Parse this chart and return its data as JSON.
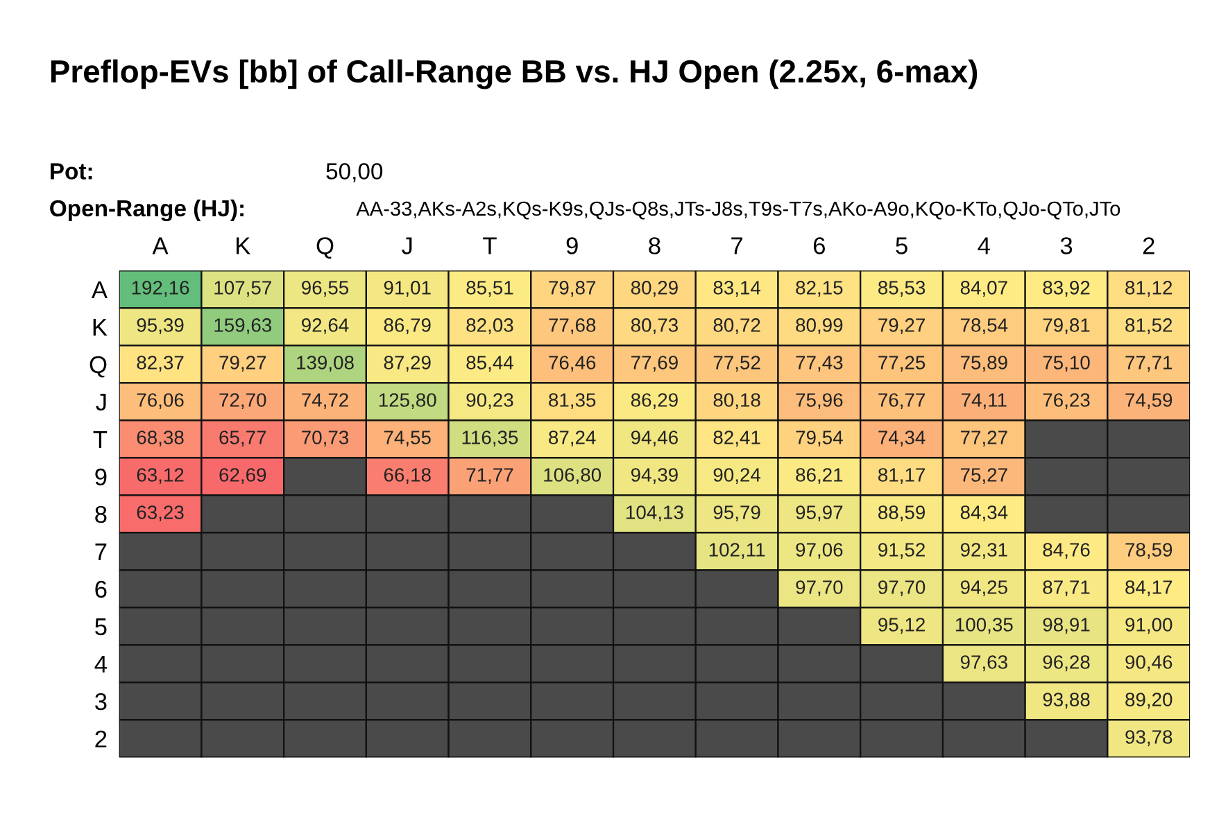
{
  "chart_data": {
    "type": "heatmap",
    "title": "Preflop-EVs [bb] of Call-Range BB vs. HJ Open (2.25x, 6-max)",
    "annotations": [
      "Pot:",
      "50,00",
      "Open-Range (HJ):",
      "AA-33,AKs-A2s,KQs-K9s,QJs-Q8s,JTs-J8s,T9s-T7s,AKo-A9o,KQo-KTo,QJo-QTo,JTo"
    ],
    "categories": [
      "A",
      "K",
      "Q",
      "J",
      "T",
      "9",
      "8",
      "7",
      "6",
      "5",
      "4",
      "3",
      "2"
    ],
    "y_categories": [
      "A",
      "K",
      "Q",
      "J",
      "T",
      "9",
      "8",
      "7",
      "6",
      "5",
      "4",
      "3",
      "2"
    ],
    "cells": [
      [
        192.16,
        107.57,
        96.55,
        91.01,
        85.51,
        79.87,
        80.29,
        83.14,
        82.15,
        85.53,
        84.07,
        83.92,
        81.12
      ],
      [
        95.39,
        159.63,
        92.64,
        86.79,
        82.03,
        77.68,
        80.73,
        80.72,
        80.99,
        79.27,
        78.54,
        79.81,
        81.52
      ],
      [
        82.37,
        79.27,
        139.08,
        87.29,
        85.44,
        76.46,
        77.69,
        77.52,
        77.43,
        77.25,
        75.89,
        75.1,
        77.71
      ],
      [
        76.06,
        72.7,
        74.72,
        125.8,
        90.23,
        81.35,
        86.29,
        80.18,
        75.96,
        76.77,
        74.11,
        76.23,
        74.59
      ],
      [
        68.38,
        65.77,
        70.73,
        74.55,
        116.35,
        87.24,
        94.46,
        82.41,
        79.54,
        74.34,
        77.27,
        null,
        null
      ],
      [
        63.12,
        62.69,
        null,
        66.18,
        71.77,
        106.8,
        94.39,
        90.24,
        86.21,
        81.17,
        75.27,
        null,
        null
      ],
      [
        63.23,
        null,
        null,
        null,
        null,
        null,
        104.13,
        95.79,
        95.97,
        88.59,
        84.34,
        null,
        null
      ],
      [
        null,
        null,
        null,
        null,
        null,
        null,
        null,
        102.11,
        97.06,
        91.52,
        92.31,
        84.76,
        78.59
      ],
      [
        null,
        null,
        null,
        null,
        null,
        null,
        null,
        null,
        97.7,
        97.7,
        94.25,
        87.71,
        84.17
      ],
      [
        null,
        null,
        null,
        null,
        null,
        null,
        null,
        null,
        null,
        95.12,
        100.35,
        98.91,
        91.0
      ],
      [
        null,
        null,
        null,
        null,
        null,
        null,
        null,
        null,
        null,
        null,
        97.63,
        96.28,
        90.46
      ],
      [
        null,
        null,
        null,
        null,
        null,
        null,
        null,
        null,
        null,
        null,
        null,
        93.88,
        89.2
      ],
      [
        null,
        null,
        null,
        null,
        null,
        null,
        null,
        null,
        null,
        null,
        null,
        null,
        93.78
      ]
    ],
    "cell_labels": [
      [
        "192,16",
        "107,57",
        "96,55",
        "91,01",
        "85,51",
        "79,87",
        "80,29",
        "83,14",
        "82,15",
        "85,53",
        "84,07",
        "83,92",
        "81,12"
      ],
      [
        "95,39",
        "159,63",
        "92,64",
        "86,79",
        "82,03",
        "77,68",
        "80,73",
        "80,72",
        "80,99",
        "79,27",
        "78,54",
        "79,81",
        "81,52"
      ],
      [
        "82,37",
        "79,27",
        "139,08",
        "87,29",
        "85,44",
        "76,46",
        "77,69",
        "77,52",
        "77,43",
        "77,25",
        "75,89",
        "75,10",
        "77,71"
      ],
      [
        "76,06",
        "72,70",
        "74,72",
        "125,80",
        "90,23",
        "81,35",
        "86,29",
        "80,18",
        "75,96",
        "76,77",
        "74,11",
        "76,23",
        "74,59"
      ],
      [
        "68,38",
        "65,77",
        "70,73",
        "74,55",
        "116,35",
        "87,24",
        "94,46",
        "82,41",
        "79,54",
        "74,34",
        "77,27",
        null,
        null
      ],
      [
        "63,12",
        "62,69",
        null,
        "66,18",
        "71,77",
        "106,80",
        "94,39",
        "90,24",
        "86,21",
        "81,17",
        "75,27",
        null,
        null
      ],
      [
        "63,23",
        null,
        null,
        null,
        null,
        null,
        "104,13",
        "95,79",
        "95,97",
        "88,59",
        "84,34",
        null,
        null
      ],
      [
        null,
        null,
        null,
        null,
        null,
        null,
        null,
        "102,11",
        "97,06",
        "91,52",
        "92,31",
        "84,76",
        "78,59"
      ],
      [
        null,
        null,
        null,
        null,
        null,
        null,
        null,
        null,
        "97,70",
        "97,70",
        "94,25",
        "87,71",
        "84,17"
      ],
      [
        null,
        null,
        null,
        null,
        null,
        null,
        null,
        null,
        null,
        "95,12",
        "100,35",
        "98,91",
        "91,00"
      ],
      [
        null,
        null,
        null,
        null,
        null,
        null,
        null,
        null,
        null,
        null,
        "97,63",
        "96,28",
        "90,46"
      ],
      [
        null,
        null,
        null,
        null,
        null,
        null,
        null,
        null,
        null,
        null,
        null,
        "93,88",
        "89,20"
      ],
      [
        null,
        null,
        null,
        null,
        null,
        null,
        null,
        null,
        null,
        null,
        null,
        null,
        "93,78"
      ]
    ]
  }
}
